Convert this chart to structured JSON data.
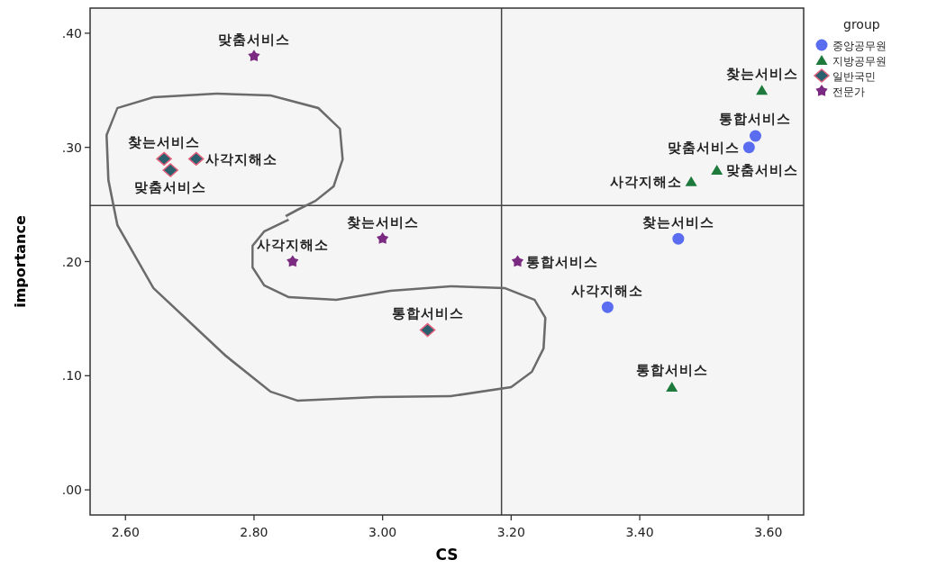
{
  "chart_data": {
    "type": "scatter",
    "xlabel": "CS",
    "ylabel": "importance",
    "legend_title": "group",
    "legend": "top right",
    "grid": false,
    "xlim": [
      2.545,
      3.655
    ],
    "xticks": [
      {
        "value": 2.6,
        "label": "2.60"
      },
      {
        "value": 2.8,
        "label": "2.80"
      },
      {
        "value": 3.0,
        "label": "3.00"
      },
      {
        "value": 3.2,
        "label": "3.20"
      },
      {
        "value": 3.4,
        "label": "3.40"
      },
      {
        "value": 3.6,
        "label": "3.60"
      }
    ],
    "ylim": [
      -0.022,
      0.422
    ],
    "yticks": [
      {
        "value": 0,
        "label": ".00"
      },
      {
        "value": 0.1,
        "label": ".10"
      },
      {
        "value": 0.2,
        "label": ".20"
      },
      {
        "value": 0.3,
        "label": ".30"
      },
      {
        "value": 0.4,
        "label": ".40"
      }
    ],
    "ref_lines": [
      {
        "axis": "x",
        "value": 3.185,
        "color": "#444444",
        "line_style": "solid"
      },
      {
        "axis": "y",
        "value": 0.249,
        "color": "#444444",
        "line_style": "solid"
      }
    ],
    "series": [
      {
        "name": "중앙공무원",
        "color": "#5a6cf0",
        "marker": "circle",
        "x": [
          3.58,
          3.57,
          3.46,
          3.35
        ],
        "values": [
          0.31,
          0.3,
          0.22,
          0.16
        ]
      },
      {
        "name": "지방공무원",
        "color": "#1e7a3c",
        "marker": "triangle",
        "x": [
          3.59,
          3.52,
          3.48,
          3.45
        ],
        "values": [
          0.35,
          0.28,
          0.27,
          0.09
        ]
      },
      {
        "name": "일반국민",
        "color": "#2a5f6e",
        "marker": "diamond",
        "x": [
          2.66,
          2.71,
          2.67,
          3.07
        ],
        "values": [
          0.29,
          0.29,
          0.28,
          0.14
        ]
      },
      {
        "name": "전문가",
        "color": "#7b2a82",
        "marker": "star",
        "x": [
          2.8,
          3.0,
          2.86,
          3.21
        ],
        "values": [
          0.38,
          0.22,
          0.2,
          0.2
        ]
      }
    ],
    "annotations": [
      {
        "text": "맞춤서비스",
        "x": 2.8,
        "y": 0.38
      },
      {
        "text": "찾는서비스",
        "x": 2.66,
        "y": 0.29
      },
      {
        "text": "사각지해소",
        "x": 2.71,
        "y": 0.29
      },
      {
        "text": "맞춤서비스",
        "x": 2.67,
        "y": 0.28
      },
      {
        "text": "찾는서비스",
        "x": 3.0,
        "y": 0.22
      },
      {
        "text": "사각지해소",
        "x": 2.86,
        "y": 0.2
      },
      {
        "text": "통합서비스",
        "x": 3.21,
        "y": 0.2
      },
      {
        "text": "통합서비스",
        "x": 3.07,
        "y": 0.14
      },
      {
        "text": "찾는서비스",
        "x": 3.59,
        "y": 0.35
      },
      {
        "text": "통합서비스",
        "x": 3.58,
        "y": 0.31
      },
      {
        "text": "맞춤서비스",
        "x": 3.57,
        "y": 0.3
      },
      {
        "text": "맞춤서비스",
        "x": 3.52,
        "y": 0.28
      },
      {
        "text": "사각지해소",
        "x": 3.48,
        "y": 0.27
      },
      {
        "text": "찾는서비스",
        "x": 3.46,
        "y": 0.22
      },
      {
        "text": "사각지해소",
        "x": 3.35,
        "y": 0.16
      },
      {
        "text": "통합서비스",
        "x": 3.45,
        "y": 0.09
      }
    ]
  }
}
